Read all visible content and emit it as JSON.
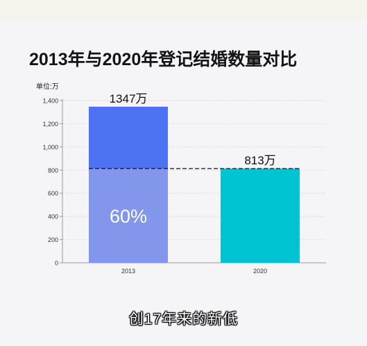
{
  "title": "2013年与2020年登记结婚数量对比",
  "subtitle": "创17年来的新低",
  "chart_data": {
    "type": "bar",
    "title": "2013年与2020年登记结婚数量对比",
    "ylabel": "单位:万",
    "xlabel": "",
    "ylim": [
      0,
      1400
    ],
    "yticks": [
      0,
      200,
      400,
      600,
      800,
      1000,
      1200,
      1400
    ],
    "ytick_labels": [
      "0",
      "200",
      "400",
      "600",
      "800",
      "1,000",
      "1,200",
      "1,400"
    ],
    "categories": [
      "2013",
      "2020"
    ],
    "values": [
      1347,
      813
    ],
    "data_labels": [
      "1347万",
      "813万"
    ],
    "highlight_value": 813,
    "overlay_label": "60%",
    "grid": true,
    "colors": {
      "bar_2013_top": "#4d73f3",
      "bar_2013_bottom": "#8296eb",
      "bar_2020": "#00c4d2",
      "axis": "#999999",
      "grid": "#d8d8d8",
      "dashed": "#111111"
    }
  }
}
